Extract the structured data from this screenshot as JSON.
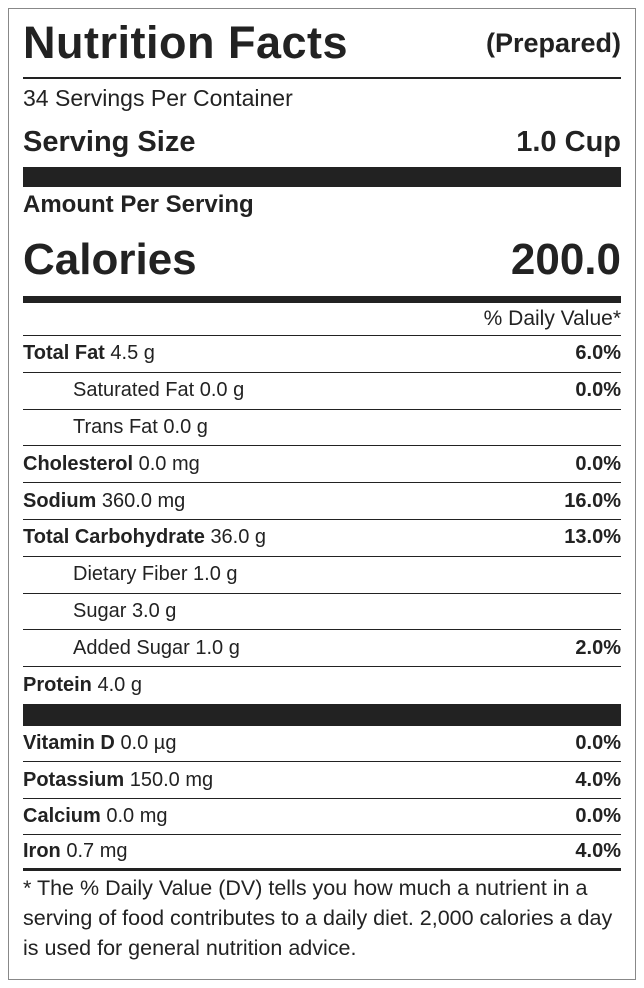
{
  "header": {
    "title": "Nutrition Facts",
    "variant": "(Prepared)"
  },
  "servings_per_container": "34 Servings Per Container",
  "serving_size": {
    "label": "Serving Size",
    "value": "1.0 Cup"
  },
  "amount_per_serving": "Amount Per Serving",
  "calories": {
    "label": "Calories",
    "value": "200.0"
  },
  "daily_value_header": "% Daily Value*",
  "nutrients": [
    {
      "name": "Total Fat",
      "amount": "4.5 g",
      "dv": "6.0%",
      "sub": [
        {
          "name": "Saturated Fat",
          "amount": "0.0 g",
          "dv": "0.0%"
        },
        {
          "name": "Trans Fat",
          "amount": "0.0 g"
        }
      ]
    },
    {
      "name": "Cholesterol",
      "amount": "0.0 mg",
      "dv": "0.0%"
    },
    {
      "name": "Sodium",
      "amount": "360.0 mg",
      "dv": "16.0%"
    },
    {
      "name": "Total Carbohydrate",
      "amount": "36.0 g",
      "dv": "13.0%",
      "sub": [
        {
          "name": "Dietary Fiber",
          "amount": "1.0 g"
        },
        {
          "name": "Sugar",
          "amount": "3.0 g"
        },
        {
          "name": "Added Sugar",
          "amount": "1.0 g",
          "dv": "2.0%"
        }
      ]
    },
    {
      "name": "Protein",
      "amount": "4.0 g"
    }
  ],
  "vitamins": [
    {
      "name": "Vitamin D",
      "amount": "0.0 µg",
      "dv": "0.0%"
    },
    {
      "name": "Potassium",
      "amount": "150.0 mg",
      "dv": "4.0%"
    },
    {
      "name": "Calcium",
      "amount": "0.0 mg",
      "dv": "0.0%"
    },
    {
      "name": "Iron",
      "amount": "0.7 mg",
      "dv": "4.0%"
    }
  ],
  "footnote": "* The % Daily Value (DV) tells you how much a nutrient in a serving of food contributes to a daily diet. 2,000 calories a day is used for general nutrition advice."
}
